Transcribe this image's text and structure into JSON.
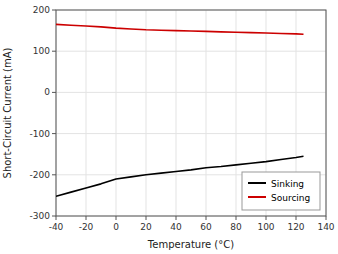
{
  "chart_data": {
    "type": "line",
    "xlabel": "Temperature (°C)",
    "ylabel": "Short-Circuit Current (mA)",
    "x": [
      -40,
      -30,
      -20,
      -10,
      0,
      10,
      20,
      30,
      40,
      50,
      60,
      70,
      80,
      90,
      100,
      110,
      120,
      125
    ],
    "series": [
      {
        "name": "Sinking",
        "color": "#000000",
        "values": [
          -252,
          -242,
          -232,
          -222,
          -210,
          -205,
          -200,
          -196,
          -192,
          -188,
          -183,
          -180,
          -176,
          -172,
          -168,
          -163,
          -158,
          -155
        ]
      },
      {
        "name": "Sourcing",
        "color": "#cc0000",
        "values": [
          165,
          163,
          161,
          159,
          156,
          154,
          152,
          151,
          150,
          149,
          148,
          147,
          146,
          145,
          144,
          143,
          142,
          141
        ]
      }
    ],
    "xlim": [
      -40,
      140
    ],
    "ylim": [
      -300,
      200
    ],
    "xticks": [
      -40,
      -20,
      0,
      20,
      40,
      60,
      80,
      100,
      120,
      140
    ],
    "yticks": [
      -300,
      -200,
      -100,
      0,
      100,
      200
    ],
    "grid": true,
    "legend": "lower right"
  }
}
